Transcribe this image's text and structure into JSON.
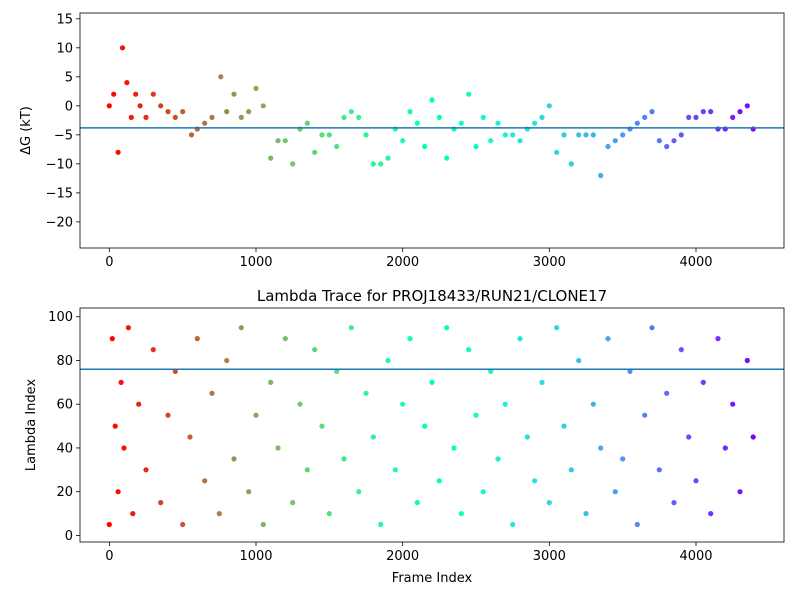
{
  "chart_data": [
    {
      "type": "scatter",
      "title": "",
      "xlabel": "",
      "ylabel": "ΔG (kT)",
      "xlim": [
        -200,
        4600
      ],
      "ylim": [
        -24.5,
        16
      ],
      "xticks": [
        0,
        1000,
        2000,
        3000,
        4000
      ],
      "xtick_labels": [
        "0",
        "1000",
        "2000",
        "3000",
        "4000"
      ],
      "yticks": [
        -20,
        -15,
        -10,
        -5,
        0,
        5,
        10,
        15
      ],
      "ytick_labels": [
        "−20",
        "−15",
        "−10",
        "−5",
        "0",
        "5",
        "10",
        "15"
      ],
      "grid": false,
      "colormap": "rainbow (red at frame 0 → violet at last frame)",
      "n_frames": 4390,
      "hline": {
        "y": -3.8,
        "color": "#1f77b4"
      },
      "series": [
        {
          "x": [
            0,
            30,
            60,
            90,
            120,
            150,
            180,
            210,
            250,
            300,
            350,
            400,
            450,
            500,
            560,
            600,
            650,
            700,
            760,
            800,
            850,
            900,
            950,
            1000,
            1050,
            1100,
            1150,
            1200,
            1250,
            1300,
            1350,
            1400,
            1450,
            1500,
            1550,
            1600,
            1650,
            1700,
            1750,
            1800,
            1850,
            1900,
            1950,
            2000,
            2050,
            2100,
            2150,
            2200,
            2250,
            2300,
            2350,
            2400,
            2450,
            2500,
            2550,
            2600,
            2650,
            2700,
            2750,
            2800,
            2850,
            2900,
            2950,
            3000,
            3050,
            3100,
            3150,
            3200,
            3250,
            3300,
            3350,
            3400,
            3450,
            3500,
            3550,
            3600,
            3650,
            3700,
            3750,
            3800,
            3850,
            3900,
            3950,
            4000,
            4050,
            4100,
            4150,
            4200,
            4250,
            4300,
            4350,
            4390
          ],
          "y": [
            0,
            2,
            -8,
            10,
            4,
            -2,
            2,
            0,
            -2,
            2,
            0,
            -1,
            -2,
            -1,
            -5,
            -4,
            -3,
            -2,
            5,
            -1,
            2,
            -2,
            -1,
            3,
            0,
            -9,
            -6,
            -6,
            -10,
            -4,
            -3,
            -8,
            -5,
            -5,
            -7,
            -2,
            -1,
            -2,
            -5,
            -10,
            -10,
            -9,
            -4,
            -6,
            -1,
            -3,
            -7,
            1,
            -2,
            -9,
            -4,
            -3,
            2,
            -7,
            -2,
            -6,
            -3,
            -5,
            -5,
            -6,
            -4,
            -3,
            -2,
            0,
            -8,
            -5,
            -10,
            -5,
            -5,
            -5,
            -12,
            -7,
            -6,
            -5,
            -4,
            -3,
            -2,
            -1,
            -6,
            -7,
            -6,
            -5,
            -2,
            -2,
            -1,
            -1,
            -4,
            -4,
            -2,
            -1,
            0,
            -4
          ]
        }
      ]
    },
    {
      "type": "scatter",
      "title": "Lambda Trace for PROJ18433/RUN21/CLONE17",
      "xlabel": "Frame Index",
      "ylabel": "Lambda Index",
      "xlim": [
        -200,
        4600
      ],
      "ylim": [
        -3,
        104
      ],
      "xticks": [
        0,
        1000,
        2000,
        3000,
        4000
      ],
      "xtick_labels": [
        "0",
        "1000",
        "2000",
        "3000",
        "4000"
      ],
      "yticks": [
        0,
        20,
        40,
        60,
        80,
        100
      ],
      "ytick_labels": [
        "0",
        "20",
        "40",
        "60",
        "80",
        "100"
      ],
      "grid": false,
      "colormap": "rainbow (red at frame 0 → violet at last frame)",
      "n_frames": 4390,
      "hline": {
        "y": 76,
        "color": "#1f77b4"
      },
      "series": [
        {
          "x": [
            0,
            20,
            40,
            60,
            80,
            100,
            130,
            160,
            200,
            250,
            300,
            350,
            400,
            450,
            500,
            550,
            600,
            650,
            700,
            750,
            800,
            850,
            900,
            950,
            1000,
            1050,
            1100,
            1150,
            1200,
            1250,
            1300,
            1350,
            1400,
            1450,
            1500,
            1550,
            1600,
            1650,
            1700,
            1750,
            1800,
            1850,
            1900,
            1950,
            2000,
            2050,
            2100,
            2150,
            2200,
            2250,
            2300,
            2350,
            2400,
            2450,
            2500,
            2550,
            2600,
            2650,
            2700,
            2750,
            2800,
            2850,
            2900,
            2950,
            3000,
            3050,
            3100,
            3150,
            3200,
            3250,
            3300,
            3350,
            3400,
            3450,
            3500,
            3550,
            3600,
            3650,
            3700,
            3750,
            3800,
            3850,
            3900,
            3950,
            4000,
            4050,
            4100,
            4150,
            4200,
            4250,
            4300,
            4350,
            4390
          ],
          "y": [
            5,
            90,
            50,
            20,
            70,
            40,
            95,
            10,
            60,
            30,
            85,
            15,
            55,
            75,
            5,
            45,
            90,
            25,
            65,
            10,
            80,
            35,
            95,
            20,
            55,
            5,
            70,
            40,
            90,
            15,
            60,
            30,
            85,
            50,
            10,
            75,
            35,
            95,
            20,
            65,
            45,
            5,
            80,
            30,
            60,
            90,
            15,
            50,
            70,
            25,
            95,
            40,
            10,
            85,
            55,
            20,
            75,
            35,
            60,
            5,
            90,
            45,
            25,
            70,
            15,
            95,
            50,
            30,
            80,
            10,
            60,
            40,
            90,
            20,
            35,
            75,
            5,
            55,
            95,
            30,
            65,
            15,
            85,
            45,
            25,
            70,
            10,
            90,
            40,
            60,
            20,
            80,
            45
          ]
        }
      ]
    }
  ]
}
